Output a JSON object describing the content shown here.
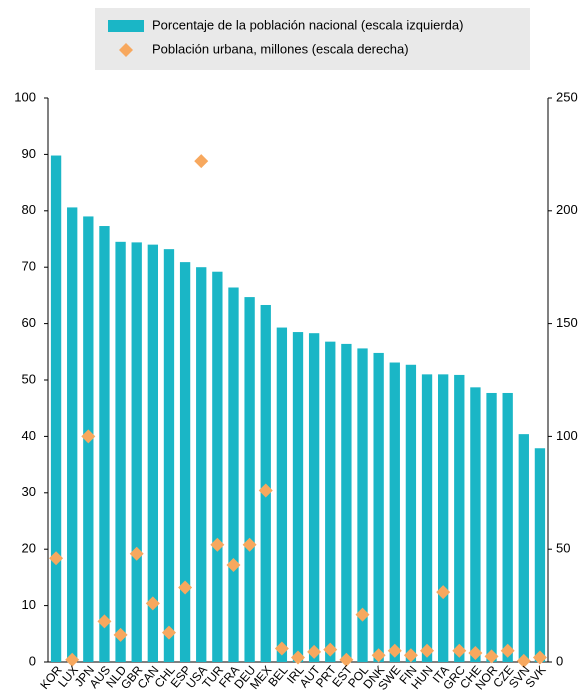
{
  "chart_data": {
    "type": "bar-scatter",
    "categories": [
      "KOR",
      "LUX",
      "JPN",
      "AUS",
      "NLD",
      "GBR",
      "CAN",
      "CHL",
      "ESP",
      "USA",
      "TUR",
      "FRA",
      "DEU",
      "MEX",
      "BEL",
      "IRL",
      "AUT",
      "PRT",
      "EST",
      "POL",
      "DNK",
      "SWE",
      "FIN",
      "HUN",
      "ITA",
      "GRC",
      "CHE",
      "NOR",
      "CZE",
      "SVN",
      "SVK"
    ],
    "series": [
      {
        "name": "Porcentaje de la población nacional (escala izquierda)",
        "type": "bar",
        "color": "#1ab6c6",
        "values": [
          89.8,
          80.6,
          79,
          77.3,
          74.5,
          74.4,
          74,
          73.2,
          70.9,
          70,
          69.2,
          66.4,
          64.7,
          63.3,
          59.3,
          58.5,
          58.3,
          56.8,
          56.4,
          55.6,
          54.8,
          53.1,
          52.7,
          51,
          51,
          50.9,
          48.7,
          47.7,
          47.7,
          40.4,
          37.9
        ]
      },
      {
        "name": "Población urbana, millones (escala derecha)",
        "type": "scatter",
        "axis": "y2",
        "color": "#f7a85e",
        "values": [
          46,
          1,
          100,
          18,
          12,
          48,
          26,
          13,
          33,
          222,
          52,
          43,
          52,
          76,
          6,
          2,
          4.5,
          5.5,
          1,
          21,
          3,
          5,
          3,
          5,
          31,
          5,
          4,
          2.5,
          5,
          0.5,
          2
        ]
      }
    ],
    "ylim": [
      0,
      100
    ],
    "yticks": [
      0,
      10,
      20,
      30,
      40,
      50,
      60,
      70,
      80,
      90,
      100
    ],
    "y2lim": [
      0,
      250
    ],
    "y2ticks": [
      0,
      50,
      100,
      150,
      200,
      250
    ],
    "grid": false
  }
}
